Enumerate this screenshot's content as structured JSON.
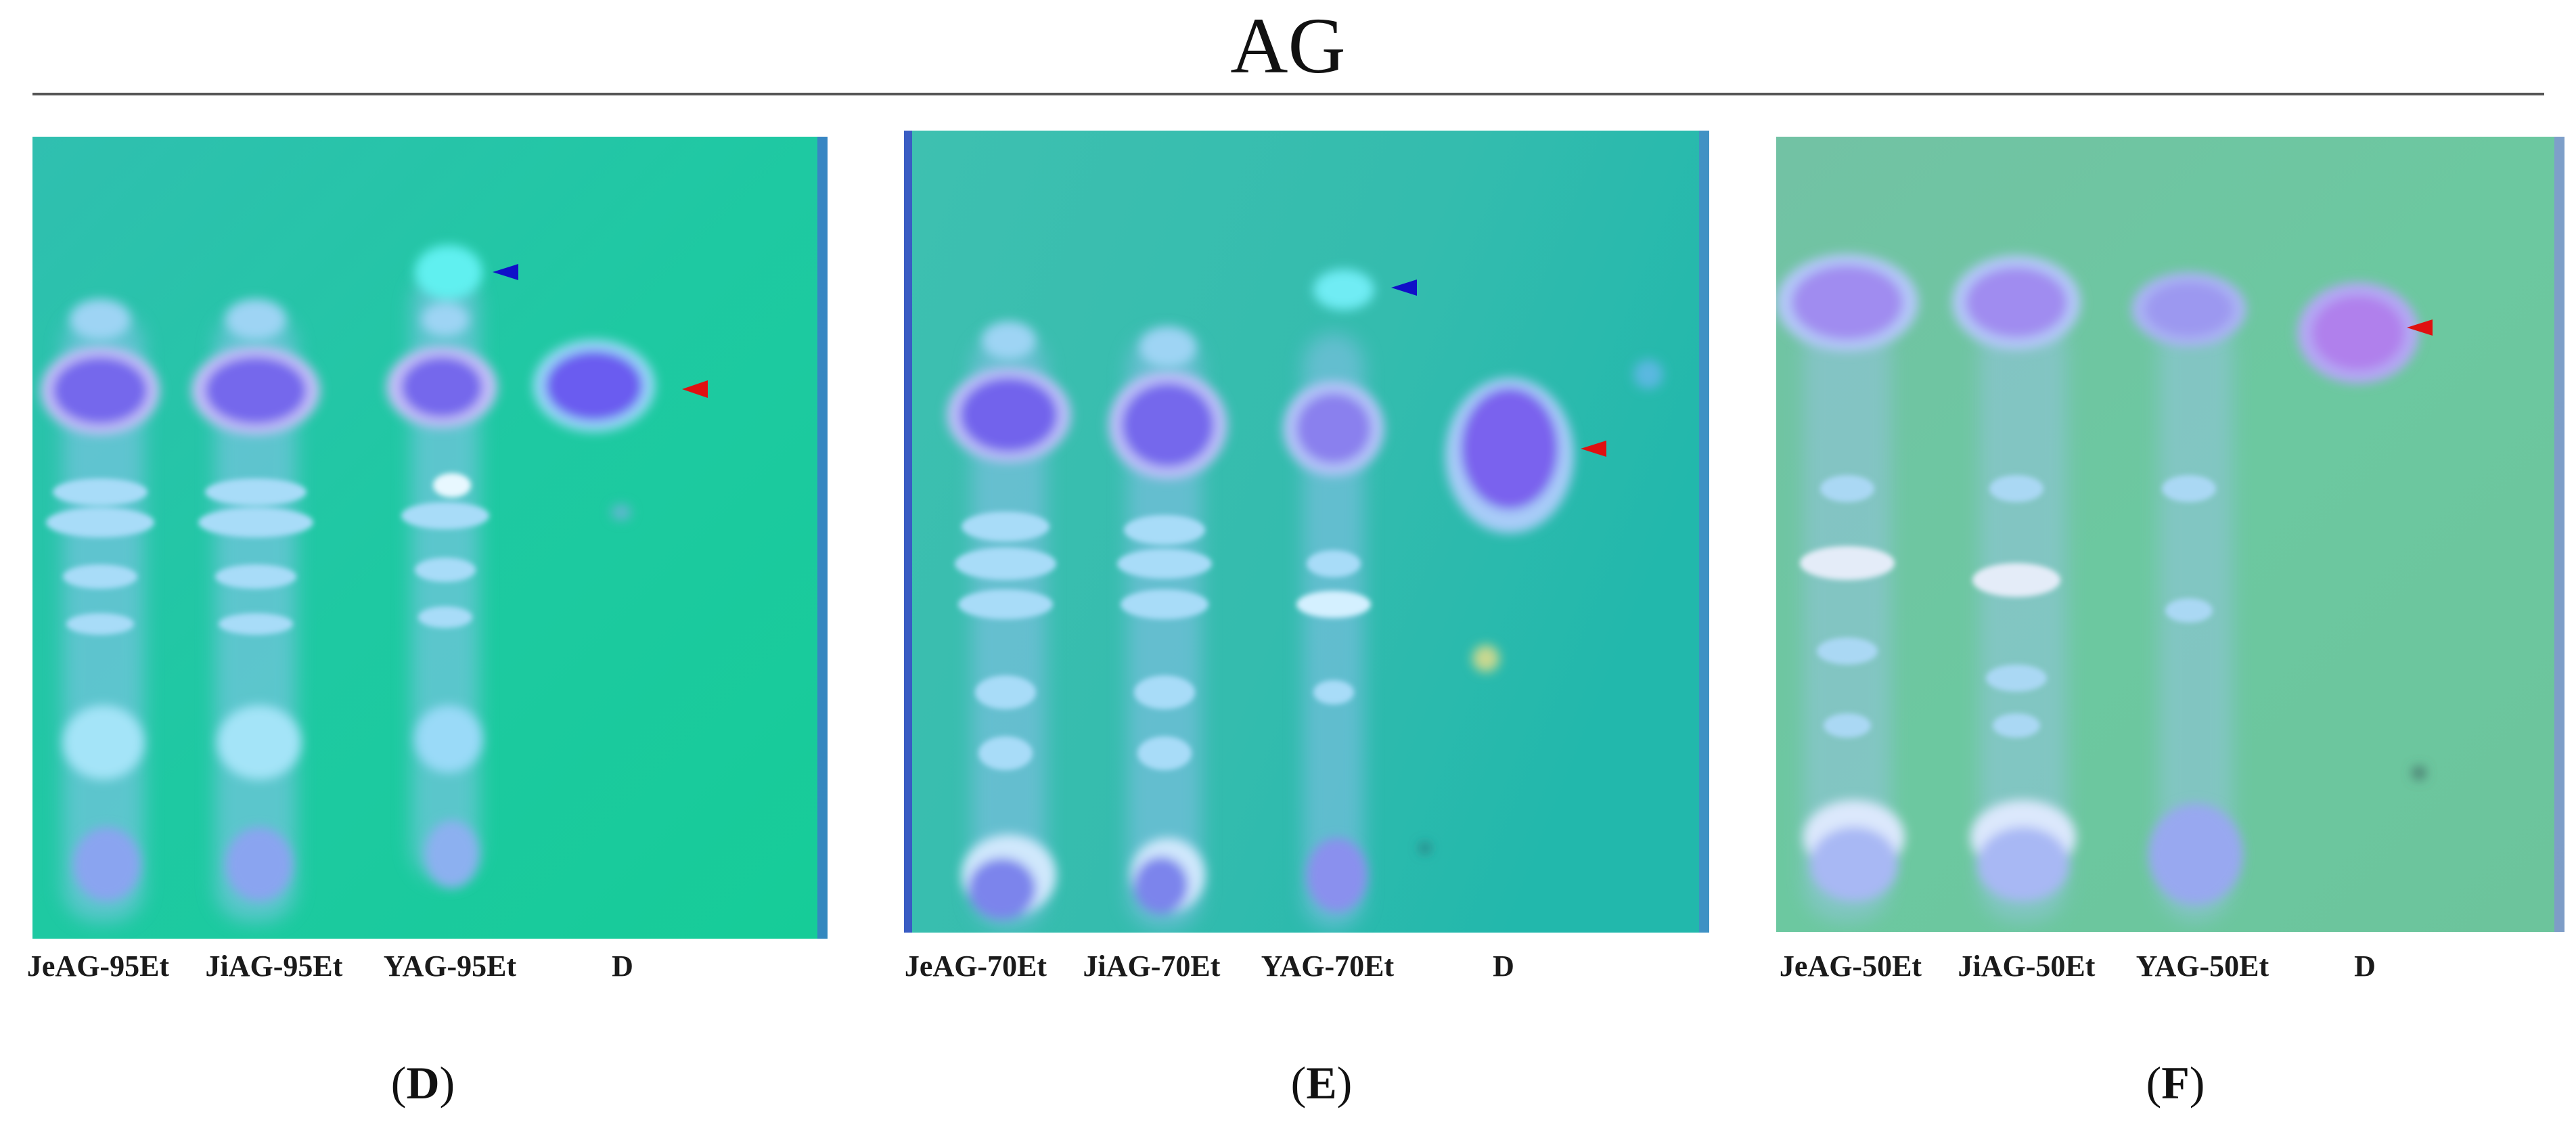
{
  "title": "AG",
  "panels": [
    {
      "label_open": "(",
      "label_letter": "D",
      "label_close": ")",
      "lanes": [
        "JeAG-95Et",
        "JiAG-95Et",
        "YAG-95Et",
        "D"
      ],
      "markers": [
        {
          "color": "#1010c8",
          "lane": 3
        },
        {
          "color": "#e01010",
          "lane": 4
        }
      ]
    },
    {
      "label_open": "(",
      "label_letter": "E",
      "label_close": ")",
      "lanes": [
        "JeAG-70Et",
        "JiAG-70Et",
        "YAG-70Et",
        "D"
      ],
      "markers": [
        {
          "color": "#1010c8",
          "lane": 3
        },
        {
          "color": "#e01010",
          "lane": 4
        }
      ]
    },
    {
      "label_open": "(",
      "label_letter": "F",
      "label_close": ")",
      "lanes": [
        "JeAG-50Et",
        "JiAG-50Et",
        "YAG-50Et",
        "D"
      ],
      "markers": [
        {
          "color": "#e01010",
          "lane": 4
        }
      ]
    }
  ],
  "colors": {
    "plate_d": "#19c8a0",
    "plate_e": "#32bcaa",
    "plate_f": "#6cc8a0",
    "spot_main": "#7a6cf0",
    "spot_band": "#8ab8f8",
    "marker_blue": "#1010c8",
    "marker_red": "#e01010"
  }
}
